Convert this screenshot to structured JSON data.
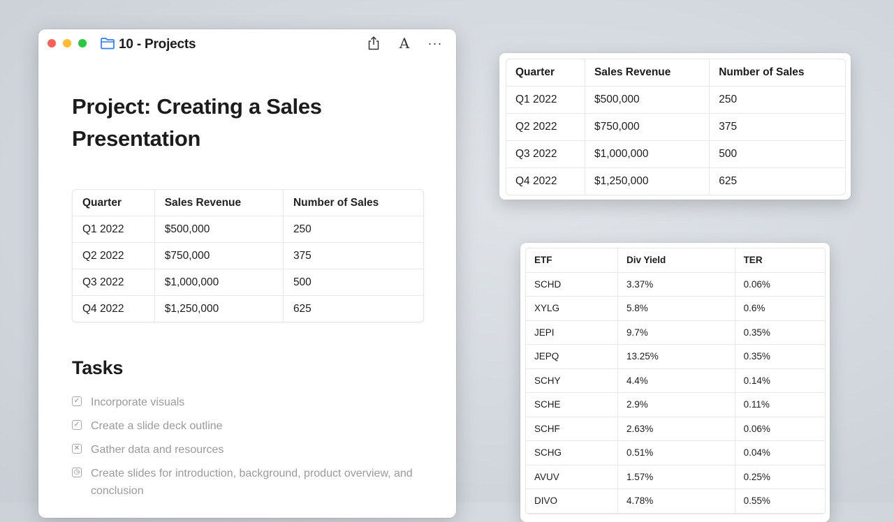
{
  "window": {
    "folder_name": "10 - Projects",
    "icons": [
      "folder-icon",
      "share-icon",
      "font-icon",
      "more-icon"
    ],
    "font_glyph": "A",
    "more_glyph": "···"
  },
  "document": {
    "title": "Project: Creating a Sales Presentation",
    "sales_table": {
      "headers": [
        "Quarter",
        "Sales Revenue",
        "Number of Sales"
      ],
      "rows": [
        [
          "Q1 2022",
          "$500,000",
          "250"
        ],
        [
          "Q2 2022",
          "$750,000",
          "375"
        ],
        [
          "Q3 2022",
          "$1,000,000",
          "500"
        ],
        [
          "Q4 2022",
          "$1,250,000",
          "625"
        ]
      ]
    },
    "tasks_heading": "Tasks",
    "tasks": [
      {
        "label": "Incorporate visuals",
        "status": "done",
        "icon": "✓"
      },
      {
        "label": "Create a slide deck outline",
        "status": "done",
        "icon": "✓"
      },
      {
        "label": "Gather data and resources",
        "status": "cancelled",
        "icon": "✕"
      },
      {
        "label": "Create slides for introduction, background, product overview, and conclusion",
        "status": "scheduled",
        "icon": "◷"
      }
    ]
  },
  "card_sales": {
    "headers": [
      "Quarter",
      "Sales Revenue",
      "Number of Sales"
    ],
    "rows": [
      [
        "Q1 2022",
        "$500,000",
        "250"
      ],
      [
        "Q2 2022",
        "$750,000",
        "375"
      ],
      [
        "Q3 2022",
        "$1,000,000",
        "500"
      ],
      [
        "Q4 2022",
        "$1,250,000",
        "625"
      ]
    ]
  },
  "card_etf": {
    "headers": [
      "ETF",
      "Div Yield",
      "TER"
    ],
    "rows": [
      [
        "SCHD",
        "3.37%",
        "0.06%"
      ],
      [
        "XYLG",
        "5.8%",
        "0.6%"
      ],
      [
        "JEPI",
        "9.7%",
        "0.35%"
      ],
      [
        "JEPQ",
        "13.25%",
        "0.35%"
      ],
      [
        "SCHY",
        "4.4%",
        "0.14%"
      ],
      [
        "SCHE",
        "2.9%",
        "0.11%"
      ],
      [
        "SCHF",
        "2.63%",
        "0.06%"
      ],
      [
        "SCHG",
        "0.51%",
        "0.04%"
      ],
      [
        "AVUV",
        "1.57%",
        "0.25%"
      ],
      [
        "DIVO",
        "4.78%",
        "0.55%"
      ]
    ]
  }
}
